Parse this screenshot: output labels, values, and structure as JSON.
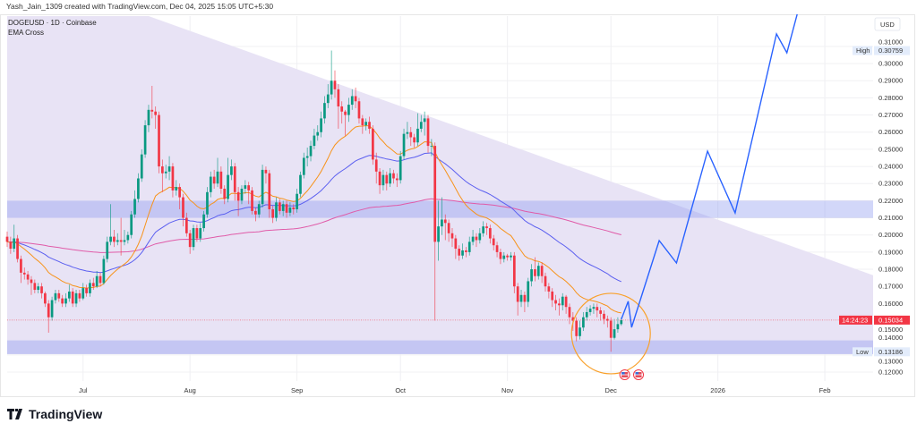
{
  "credit": "Yash_Jain_1309 created with TradingView.com, Dec 04, 2025 15:05 UTC+5:30",
  "legend": {
    "symbol": "DOGEUSD · 1D · Coinbase",
    "indicator": "EMA Cross"
  },
  "footer": {
    "brand": "TradingView"
  },
  "colors": {
    "up": "#089981",
    "down": "#f23645",
    "ema_fast": "#f7931a",
    "ema_mid": "#5b5ff0",
    "ema_slow": "#e05ba8",
    "projection": "#2962ff",
    "wedge": "#e7e1f4",
    "zone": "#b8bdf2",
    "circle": "#f9a12b"
  },
  "chart_data": {
    "type": "candlestick",
    "currency": "USD",
    "ylim": [
      0.1148,
      0.3277
    ],
    "xlim": [
      "2025-06-09",
      "2026-02-15"
    ],
    "y_ticks": [
      "0.31000",
      "0.30000",
      "0.29000",
      "0.28000",
      "0.27000",
      "0.26000",
      "0.25000",
      "0.24000",
      "0.23000",
      "0.22000",
      "0.21000",
      "0.20000",
      "0.19000",
      "0.18000",
      "0.17000",
      "0.16000",
      "0.15000",
      "0.14000",
      "0.13000",
      "0.12000"
    ],
    "x_ticks": [
      {
        "label": "Jul",
        "date": "2025-07-01"
      },
      {
        "label": "Aug",
        "date": "2025-08-01"
      },
      {
        "label": "Sep",
        "date": "2025-09-01"
      },
      {
        "label": "Oct",
        "date": "2025-10-01"
      },
      {
        "label": "Nov",
        "date": "2025-11-01"
      },
      {
        "label": "Dec",
        "date": "2025-12-01"
      },
      {
        "label": "2026",
        "date": "2026-01-01"
      },
      {
        "label": "Feb",
        "date": "2026-02-01"
      }
    ],
    "grid": true,
    "high": {
      "label": "High",
      "value": "0.30759"
    },
    "low": {
      "label": "Low",
      "value": "0.13186"
    },
    "last": {
      "value": "0.15034",
      "countdown": "14:24:23"
    },
    "ema_periods": [
      20,
      50,
      200
    ],
    "start_date": "2025-06-09",
    "candles_ohlc": [
      [
        0.199,
        0.202,
        0.193,
        0.196
      ],
      [
        0.196,
        0.199,
        0.189,
        0.192
      ],
      [
        0.192,
        0.206,
        0.19,
        0.198
      ],
      [
        0.198,
        0.2,
        0.184,
        0.186
      ],
      [
        0.186,
        0.188,
        0.172,
        0.178
      ],
      [
        0.178,
        0.181,
        0.174,
        0.177
      ],
      [
        0.177,
        0.179,
        0.171,
        0.174
      ],
      [
        0.174,
        0.176,
        0.165,
        0.172
      ],
      [
        0.172,
        0.174,
        0.166,
        0.168
      ],
      [
        0.168,
        0.172,
        0.166,
        0.17
      ],
      [
        0.17,
        0.172,
        0.163,
        0.166
      ],
      [
        0.166,
        0.167,
        0.158,
        0.16
      ],
      [
        0.16,
        0.162,
        0.143,
        0.152
      ],
      [
        0.152,
        0.164,
        0.15,
        0.162
      ],
      [
        0.162,
        0.168,
        0.16,
        0.166
      ],
      [
        0.166,
        0.168,
        0.161,
        0.163
      ],
      [
        0.163,
        0.165,
        0.158,
        0.16
      ],
      [
        0.16,
        0.166,
        0.158,
        0.163
      ],
      [
        0.163,
        0.171,
        0.161,
        0.167
      ],
      [
        0.167,
        0.169,
        0.158,
        0.16
      ],
      [
        0.16,
        0.168,
        0.158,
        0.166
      ],
      [
        0.166,
        0.168,
        0.161,
        0.163
      ],
      [
        0.163,
        0.172,
        0.162,
        0.169
      ],
      [
        0.169,
        0.171,
        0.164,
        0.166
      ],
      [
        0.166,
        0.174,
        0.164,
        0.172
      ],
      [
        0.172,
        0.175,
        0.168,
        0.17
      ],
      [
        0.17,
        0.179,
        0.169,
        0.176
      ],
      [
        0.176,
        0.178,
        0.17,
        0.172
      ],
      [
        0.172,
        0.188,
        0.171,
        0.186
      ],
      [
        0.186,
        0.199,
        0.184,
        0.196
      ],
      [
        0.196,
        0.218,
        0.194,
        0.199
      ],
      [
        0.199,
        0.203,
        0.193,
        0.196
      ],
      [
        0.196,
        0.201,
        0.194,
        0.197
      ],
      [
        0.197,
        0.21,
        0.188,
        0.196
      ],
      [
        0.196,
        0.203,
        0.194,
        0.197
      ],
      [
        0.197,
        0.202,
        0.195,
        0.2
      ],
      [
        0.2,
        0.214,
        0.198,
        0.212
      ],
      [
        0.212,
        0.226,
        0.21,
        0.221
      ],
      [
        0.221,
        0.236,
        0.219,
        0.233
      ],
      [
        0.233,
        0.25,
        0.231,
        0.247
      ],
      [
        0.247,
        0.267,
        0.245,
        0.264
      ],
      [
        0.264,
        0.276,
        0.26,
        0.273
      ],
      [
        0.273,
        0.287,
        0.268,
        0.272
      ],
      [
        0.272,
        0.275,
        0.262,
        0.27
      ],
      [
        0.27,
        0.272,
        0.236,
        0.24
      ],
      [
        0.24,
        0.244,
        0.225,
        0.236
      ],
      [
        0.236,
        0.241,
        0.233,
        0.237
      ],
      [
        0.237,
        0.246,
        0.232,
        0.24
      ],
      [
        0.24,
        0.242,
        0.222,
        0.226
      ],
      [
        0.226,
        0.232,
        0.223,
        0.228
      ],
      [
        0.228,
        0.23,
        0.215,
        0.222
      ],
      [
        0.222,
        0.224,
        0.205,
        0.21
      ],
      [
        0.21,
        0.213,
        0.199,
        0.201
      ],
      [
        0.201,
        0.203,
        0.189,
        0.193
      ],
      [
        0.193,
        0.206,
        0.191,
        0.204
      ],
      [
        0.204,
        0.206,
        0.196,
        0.198
      ],
      [
        0.198,
        0.207,
        0.196,
        0.204
      ],
      [
        0.204,
        0.214,
        0.202,
        0.212
      ],
      [
        0.212,
        0.228,
        0.21,
        0.225
      ],
      [
        0.225,
        0.237,
        0.222,
        0.234
      ],
      [
        0.234,
        0.238,
        0.227,
        0.23
      ],
      [
        0.23,
        0.245,
        0.228,
        0.237
      ],
      [
        0.237,
        0.24,
        0.224,
        0.227
      ],
      [
        0.227,
        0.229,
        0.218,
        0.221
      ],
      [
        0.221,
        0.245,
        0.219,
        0.235
      ],
      [
        0.235,
        0.244,
        0.232,
        0.24
      ],
      [
        0.24,
        0.242,
        0.22,
        0.225
      ],
      [
        0.225,
        0.228,
        0.211,
        0.22
      ],
      [
        0.22,
        0.229,
        0.218,
        0.227
      ],
      [
        0.227,
        0.232,
        0.224,
        0.229
      ],
      [
        0.229,
        0.231,
        0.218,
        0.226
      ],
      [
        0.226,
        0.228,
        0.212,
        0.214
      ],
      [
        0.214,
        0.216,
        0.208,
        0.212
      ],
      [
        0.212,
        0.22,
        0.21,
        0.218
      ],
      [
        0.218,
        0.241,
        0.216,
        0.238
      ],
      [
        0.238,
        0.24,
        0.23,
        0.236
      ],
      [
        0.236,
        0.238,
        0.21,
        0.215
      ],
      [
        0.215,
        0.217,
        0.207,
        0.21
      ],
      [
        0.21,
        0.222,
        0.208,
        0.219
      ],
      [
        0.219,
        0.221,
        0.212,
        0.214
      ],
      [
        0.214,
        0.22,
        0.211,
        0.218
      ],
      [
        0.218,
        0.22,
        0.21,
        0.213
      ],
      [
        0.213,
        0.219,
        0.211,
        0.216
      ],
      [
        0.216,
        0.218,
        0.212,
        0.215
      ],
      [
        0.215,
        0.227,
        0.213,
        0.224
      ],
      [
        0.224,
        0.237,
        0.222,
        0.235
      ],
      [
        0.235,
        0.248,
        0.233,
        0.245
      ],
      [
        0.245,
        0.251,
        0.24,
        0.246
      ],
      [
        0.246,
        0.255,
        0.243,
        0.252
      ],
      [
        0.252,
        0.262,
        0.25,
        0.258
      ],
      [
        0.258,
        0.264,
        0.255,
        0.26
      ],
      [
        0.26,
        0.272,
        0.257,
        0.268
      ],
      [
        0.268,
        0.281,
        0.265,
        0.277
      ],
      [
        0.277,
        0.288,
        0.274,
        0.282
      ],
      [
        0.282,
        0.3076,
        0.279,
        0.29
      ],
      [
        0.29,
        0.296,
        0.28,
        0.285
      ],
      [
        0.285,
        0.288,
        0.262,
        0.275
      ],
      [
        0.275,
        0.278,
        0.265,
        0.272
      ],
      [
        0.272,
        0.273,
        0.258,
        0.27
      ],
      [
        0.27,
        0.28,
        0.266,
        0.276
      ],
      [
        0.276,
        0.285,
        0.273,
        0.281
      ],
      [
        0.281,
        0.286,
        0.274,
        0.278
      ],
      [
        0.278,
        0.28,
        0.265,
        0.268
      ],
      [
        0.268,
        0.27,
        0.259,
        0.264
      ],
      [
        0.264,
        0.268,
        0.261,
        0.266
      ],
      [
        0.266,
        0.269,
        0.259,
        0.262
      ],
      [
        0.262,
        0.264,
        0.241,
        0.244
      ],
      [
        0.244,
        0.248,
        0.23,
        0.237
      ],
      [
        0.237,
        0.239,
        0.224,
        0.229
      ],
      [
        0.229,
        0.238,
        0.226,
        0.235
      ],
      [
        0.235,
        0.237,
        0.226,
        0.23
      ],
      [
        0.23,
        0.239,
        0.228,
        0.236
      ],
      [
        0.236,
        0.238,
        0.23,
        0.233
      ],
      [
        0.233,
        0.236,
        0.228,
        0.232
      ],
      [
        0.232,
        0.249,
        0.23,
        0.246
      ],
      [
        0.246,
        0.262,
        0.244,
        0.259
      ],
      [
        0.259,
        0.266,
        0.256,
        0.26
      ],
      [
        0.26,
        0.263,
        0.252,
        0.257
      ],
      [
        0.257,
        0.259,
        0.251,
        0.254
      ],
      [
        0.254,
        0.271,
        0.252,
        0.262
      ],
      [
        0.262,
        0.27,
        0.26,
        0.266
      ],
      [
        0.266,
        0.272,
        0.258,
        0.268
      ],
      [
        0.268,
        0.27,
        0.248,
        0.252
      ],
      [
        0.252,
        0.256,
        0.246,
        0.252
      ],
      [
        0.252,
        0.254,
        0.15,
        0.196
      ],
      [
        0.196,
        0.22,
        0.185,
        0.205
      ],
      [
        0.205,
        0.222,
        0.2,
        0.209
      ],
      [
        0.209,
        0.212,
        0.197,
        0.207
      ],
      [
        0.207,
        0.209,
        0.196,
        0.201
      ],
      [
        0.201,
        0.204,
        0.193,
        0.198
      ],
      [
        0.198,
        0.2,
        0.186,
        0.192
      ],
      [
        0.192,
        0.194,
        0.185,
        0.188
      ],
      [
        0.188,
        0.195,
        0.186,
        0.191
      ],
      [
        0.191,
        0.193,
        0.187,
        0.19
      ],
      [
        0.19,
        0.199,
        0.188,
        0.196
      ],
      [
        0.196,
        0.203,
        0.194,
        0.199
      ],
      [
        0.199,
        0.201,
        0.193,
        0.197
      ],
      [
        0.197,
        0.204,
        0.195,
        0.201
      ],
      [
        0.201,
        0.208,
        0.199,
        0.205
      ],
      [
        0.205,
        0.207,
        0.2,
        0.204
      ],
      [
        0.204,
        0.206,
        0.195,
        0.198
      ],
      [
        0.198,
        0.2,
        0.191,
        0.194
      ],
      [
        0.194,
        0.196,
        0.187,
        0.19
      ],
      [
        0.19,
        0.192,
        0.183,
        0.186
      ],
      [
        0.186,
        0.19,
        0.184,
        0.188
      ],
      [
        0.188,
        0.189,
        0.185,
        0.187
      ],
      [
        0.187,
        0.19,
        0.185,
        0.188
      ],
      [
        0.188,
        0.19,
        0.166,
        0.17
      ],
      [
        0.17,
        0.172,
        0.153,
        0.161
      ],
      [
        0.161,
        0.168,
        0.158,
        0.165
      ],
      [
        0.165,
        0.167,
        0.155,
        0.161
      ],
      [
        0.161,
        0.175,
        0.158,
        0.173
      ],
      [
        0.173,
        0.183,
        0.17,
        0.18
      ],
      [
        0.18,
        0.187,
        0.173,
        0.176
      ],
      [
        0.176,
        0.184,
        0.174,
        0.182
      ],
      [
        0.182,
        0.184,
        0.172,
        0.176
      ],
      [
        0.176,
        0.178,
        0.167,
        0.17
      ],
      [
        0.17,
        0.172,
        0.163,
        0.167
      ],
      [
        0.167,
        0.169,
        0.158,
        0.162
      ],
      [
        0.162,
        0.165,
        0.156,
        0.16
      ],
      [
        0.16,
        0.163,
        0.153,
        0.159
      ],
      [
        0.159,
        0.166,
        0.156,
        0.164
      ],
      [
        0.164,
        0.165,
        0.154,
        0.158
      ],
      [
        0.158,
        0.16,
        0.148,
        0.152
      ],
      [
        0.152,
        0.155,
        0.144,
        0.15
      ],
      [
        0.15,
        0.152,
        0.138,
        0.141
      ],
      [
        0.141,
        0.15,
        0.139,
        0.146
      ],
      [
        0.146,
        0.155,
        0.144,
        0.152
      ],
      [
        0.152,
        0.158,
        0.15,
        0.155
      ],
      [
        0.155,
        0.159,
        0.153,
        0.157
      ],
      [
        0.157,
        0.16,
        0.154,
        0.158
      ],
      [
        0.158,
        0.16,
        0.152,
        0.156
      ],
      [
        0.156,
        0.158,
        0.15,
        0.154
      ],
      [
        0.154,
        0.156,
        0.148,
        0.151
      ],
      [
        0.151,
        0.153,
        0.146,
        0.15
      ],
      [
        0.15,
        0.152,
        0.13186,
        0.14
      ],
      [
        0.14,
        0.151,
        0.139,
        0.145
      ],
      [
        0.145,
        0.152,
        0.143,
        0.148
      ],
      [
        0.148,
        0.152,
        0.147,
        0.15034
      ]
    ],
    "drawings": {
      "resistance_zone": [
        0.21,
        0.22
      ],
      "support_zone": [
        0.1305,
        0.1385
      ],
      "wedge_upper_line": [
        {
          "date": "2025-07-20",
          "price": 0.3277
        },
        {
          "date": "2026-02-15",
          "price": 0.1765
        }
      ],
      "projection_path": [
        {
          "date": "2025-12-04",
          "price": 0.1508
        },
        {
          "date": "2025-12-06",
          "price": 0.1613
        },
        {
          "date": "2025-12-07",
          "price": 0.1461
        },
        {
          "date": "2025-12-15",
          "price": 0.1967
        },
        {
          "date": "2025-12-20",
          "price": 0.1837
        },
        {
          "date": "2025-12-29",
          "price": 0.2489
        },
        {
          "date": "2026-01-06",
          "price": 0.2129
        },
        {
          "date": "2026-01-18",
          "price": 0.3173
        },
        {
          "date": "2026-01-21",
          "price": 0.3063
        },
        {
          "date": "2026-01-24",
          "price": 0.3288
        }
      ],
      "highlight_circle": {
        "date": "2025-12-01",
        "price": 0.1425
      },
      "events": [
        {
          "icon": "us-flag-icon",
          "date": "2025-12-05"
        },
        {
          "icon": "us-flag-icon",
          "date": "2025-12-09"
        }
      ]
    }
  }
}
